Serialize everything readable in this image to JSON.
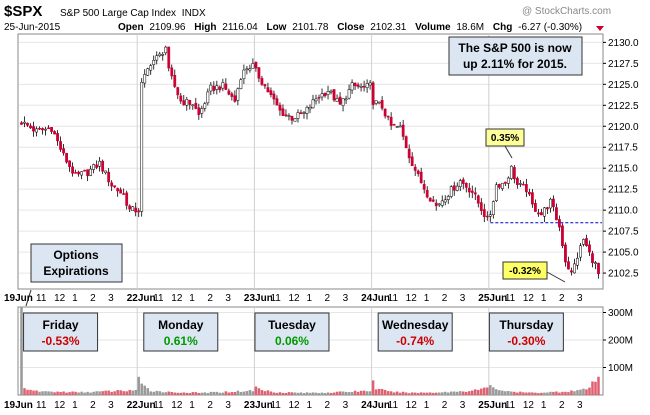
{
  "header": {
    "symbol": "$SPX",
    "name": "S&P 500 Large Cap Index",
    "exchange": "INDX",
    "date": "25-Jun-2015",
    "open_label": "Open",
    "open": "2109.96",
    "high_label": "High",
    "high": "2116.04",
    "low_label": "Low",
    "low": "2101.78",
    "close_label": "Close",
    "close": "2102.31",
    "volume_label": "Volume",
    "volume": "18.6M",
    "chg_label": "Chg",
    "chg": "-6.27 (-0.30%)",
    "watermark": "@ StockCharts.com"
  },
  "annotations": {
    "note_line1": "The S&P 500 is now",
    "note_line2": "up 2.11% for 2015.",
    "callout_up": "0.35%",
    "callout_down": "-0.32%",
    "options_line1": "Options",
    "options_line2": "Expirations",
    "reference_level": 2108.5
  },
  "colors": {
    "up": "#ffffff",
    "down": "#cc0033",
    "wick": "#000000",
    "volume_up": "#999999",
    "volume_down": "#e06070",
    "positive_text": "#009900",
    "negative_text": "#cc0000",
    "callout_up_bg": "#ffff99",
    "callout_down_bg": "#ffff66",
    "info_box_bg": "#dce6f2",
    "panel_bg": "#ffffff",
    "grid": "#e6e6e6",
    "ref_line": "#0000cc"
  },
  "chart_data": {
    "type": "candlestick",
    "title": "$SPX S&P 500 Large Cap Index INDX",
    "ylim": [
      2100.6,
      2131.0
    ],
    "yticks": [
      2102.5,
      2105.0,
      2107.5,
      2110.0,
      2112.5,
      2115.0,
      2117.5,
      2120.0,
      2122.5,
      2125.0,
      2127.5,
      2130.0
    ],
    "volume_ticks": [
      "100M",
      "200M",
      "300M"
    ],
    "volume_tick_values": [
      100,
      200,
      300
    ],
    "volume_max": 320,
    "x_tick_labels": [
      "19Jun",
      "11",
      "12",
      "1",
      "2",
      "3",
      "22Jun",
      "11",
      "12",
      "1",
      "2",
      "3",
      "23Jun",
      "11",
      "12",
      "1",
      "2",
      "3",
      "24Jun",
      "11",
      "12",
      "1",
      "2",
      "3",
      "25Jun",
      "11",
      "12",
      "1",
      "2",
      "3"
    ],
    "x_tick_bold": [
      true,
      false,
      false,
      false,
      false,
      false,
      true,
      false,
      false,
      false,
      false,
      false,
      true,
      false,
      false,
      false,
      false,
      false,
      true,
      false,
      false,
      false,
      false,
      false,
      true,
      false,
      false,
      false,
      false,
      false
    ],
    "x_tick_slot": [
      0,
      6.5,
      12.5,
      18.5,
      24.5,
      30.5,
      39,
      45.5,
      51.5,
      57.5,
      63.5,
      69.5,
      78,
      84.5,
      90.5,
      96.5,
      102.5,
      108.5,
      117,
      123.5,
      129.5,
      135.5,
      141.5,
      147.5,
      156,
      162.5,
      168.5,
      174.5,
      180.5,
      186.5
    ],
    "slots_total": 193,
    "gap_after": [
      38,
      77,
      116,
      155
    ],
    "day_summary": [
      {
        "day": "Friday",
        "change": "-0.53%",
        "slot": 13
      },
      {
        "day": "Monday",
        "change": "0.61%",
        "slot": 53
      },
      {
        "day": "Tuesday",
        "change": "0.06%",
        "slot": 90
      },
      {
        "day": "Wednesday",
        "change": "-0.74%",
        "slot": 131
      },
      {
        "day": "Thursday",
        "change": "-0.30%",
        "slot": 168
      }
    ],
    "close_path": [
      [
        0,
        2120.5
      ],
      [
        5,
        2119.4
      ],
      [
        10,
        2119.8
      ],
      [
        14,
        2116.5
      ],
      [
        18,
        2114.0
      ],
      [
        22,
        2114.5
      ],
      [
        26,
        2115.6
      ],
      [
        30,
        2113.0
      ],
      [
        34,
        2111.8
      ],
      [
        36,
        2110.0
      ],
      [
        38,
        2110.0
      ],
      [
        39,
        2110.0
      ],
      [
        40,
        2125.0
      ],
      [
        43,
        2127.6
      ],
      [
        46,
        2128.4
      ],
      [
        48,
        2129.5
      ],
      [
        49,
        2126.5
      ],
      [
        53,
        2123.0
      ],
      [
        57,
        2122.7
      ],
      [
        59,
        2121.3
      ],
      [
        63,
        2124.5
      ],
      [
        67,
        2124.8
      ],
      [
        71,
        2123.0
      ],
      [
        73,
        2126.0
      ],
      [
        75,
        2127.0
      ],
      [
        77,
        2127.2
      ],
      [
        78,
        2126.5
      ],
      [
        82,
        2124.2
      ],
      [
        86,
        2121.8
      ],
      [
        90,
        2121.0
      ],
      [
        94,
        2121.5
      ],
      [
        98,
        2123.3
      ],
      [
        102,
        2124.3
      ],
      [
        106,
        2122.5
      ],
      [
        110,
        2124.8
      ],
      [
        114,
        2124.6
      ],
      [
        116,
        2124.8
      ],
      [
        117,
        2123.0
      ],
      [
        120,
        2122.3
      ],
      [
        123,
        2120.0
      ],
      [
        126,
        2119.8
      ],
      [
        129,
        2116.5
      ],
      [
        132,
        2114.0
      ],
      [
        135,
        2112.0
      ],
      [
        138,
        2110.5
      ],
      [
        142,
        2112.0
      ],
      [
        146,
        2113.5
      ],
      [
        150,
        2112.2
      ],
      [
        154,
        2109.5
      ],
      [
        155,
        2108.8
      ],
      [
        156,
        2109.6
      ],
      [
        158,
        2113.0
      ],
      [
        161,
        2113.3
      ],
      [
        163,
        2115.0
      ],
      [
        165,
        2113.0
      ],
      [
        168,
        2112.5
      ],
      [
        170,
        2110.5
      ],
      [
        173,
        2109.5
      ],
      [
        176,
        2111.0
      ],
      [
        179,
        2108.0
      ],
      [
        181,
        2104.0
      ],
      [
        183,
        2102.4
      ],
      [
        185,
        2104.5
      ],
      [
        187,
        2106.5
      ],
      [
        189,
        2104.8
      ],
      [
        191,
        2103.5
      ],
      [
        192,
        2102.3
      ]
    ],
    "volume_path": [
      [
        0,
        300
      ],
      [
        1,
        30
      ],
      [
        3,
        15
      ],
      [
        10,
        12
      ],
      [
        20,
        10
      ],
      [
        30,
        14
      ],
      [
        38,
        18
      ],
      [
        39,
        55
      ],
      [
        40,
        35
      ],
      [
        43,
        16
      ],
      [
        50,
        10
      ],
      [
        60,
        8
      ],
      [
        70,
        12
      ],
      [
        77,
        16
      ],
      [
        78,
        28
      ],
      [
        80,
        18
      ],
      [
        85,
        10
      ],
      [
        95,
        8
      ],
      [
        105,
        10
      ],
      [
        116,
        16
      ],
      [
        117,
        45
      ],
      [
        118,
        25
      ],
      [
        122,
        12
      ],
      [
        130,
        8
      ],
      [
        140,
        10
      ],
      [
        150,
        16
      ],
      [
        155,
        25
      ],
      [
        156,
        40
      ],
      [
        158,
        22
      ],
      [
        162,
        12
      ],
      [
        170,
        8
      ],
      [
        180,
        12
      ],
      [
        188,
        20
      ],
      [
        191,
        50
      ],
      [
        192,
        60
      ]
    ]
  }
}
